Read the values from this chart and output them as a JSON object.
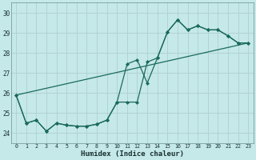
{
  "xlabel": "Humidex (Indice chaleur)",
  "xlim": [
    -0.5,
    23.5
  ],
  "ylim": [
    23.5,
    30.5
  ],
  "xticks": [
    0,
    1,
    2,
    3,
    4,
    5,
    6,
    7,
    8,
    9,
    10,
    11,
    12,
    13,
    14,
    15,
    16,
    17,
    18,
    19,
    20,
    21,
    22,
    23
  ],
  "yticks": [
    24,
    25,
    26,
    27,
    28,
    29,
    30
  ],
  "bg_color": "#c5e8e8",
  "line_color": "#1a6b5a",
  "grid_color": "#b0d0d0",
  "line1_x": [
    0,
    1,
    2,
    3,
    4,
    5,
    6,
    7,
    8,
    9,
    10,
    11,
    12,
    13,
    14,
    15,
    16,
    17,
    18,
    19,
    20,
    21,
    22,
    23
  ],
  "line1_y": [
    25.9,
    24.5,
    24.65,
    24.1,
    24.5,
    24.4,
    24.35,
    24.35,
    24.45,
    24.65,
    25.55,
    27.45,
    27.65,
    26.5,
    27.75,
    29.05,
    29.65,
    29.15,
    29.35,
    29.15,
    29.15,
    28.85,
    28.5,
    28.5
  ],
  "line2_x": [
    0,
    1,
    2,
    3,
    4,
    5,
    6,
    7,
    8,
    9,
    10,
    11,
    12,
    13,
    14,
    15,
    16,
    17,
    18,
    19,
    20,
    21,
    22,
    23
  ],
  "line2_y": [
    25.9,
    24.5,
    24.65,
    24.1,
    24.5,
    24.4,
    24.35,
    24.35,
    24.45,
    24.65,
    25.55,
    25.55,
    25.55,
    27.55,
    27.75,
    29.05,
    29.65,
    29.15,
    29.35,
    29.15,
    29.15,
    28.85,
    28.5,
    28.5
  ],
  "line3_x": [
    0,
    23
  ],
  "line3_y": [
    25.9,
    28.5
  ]
}
